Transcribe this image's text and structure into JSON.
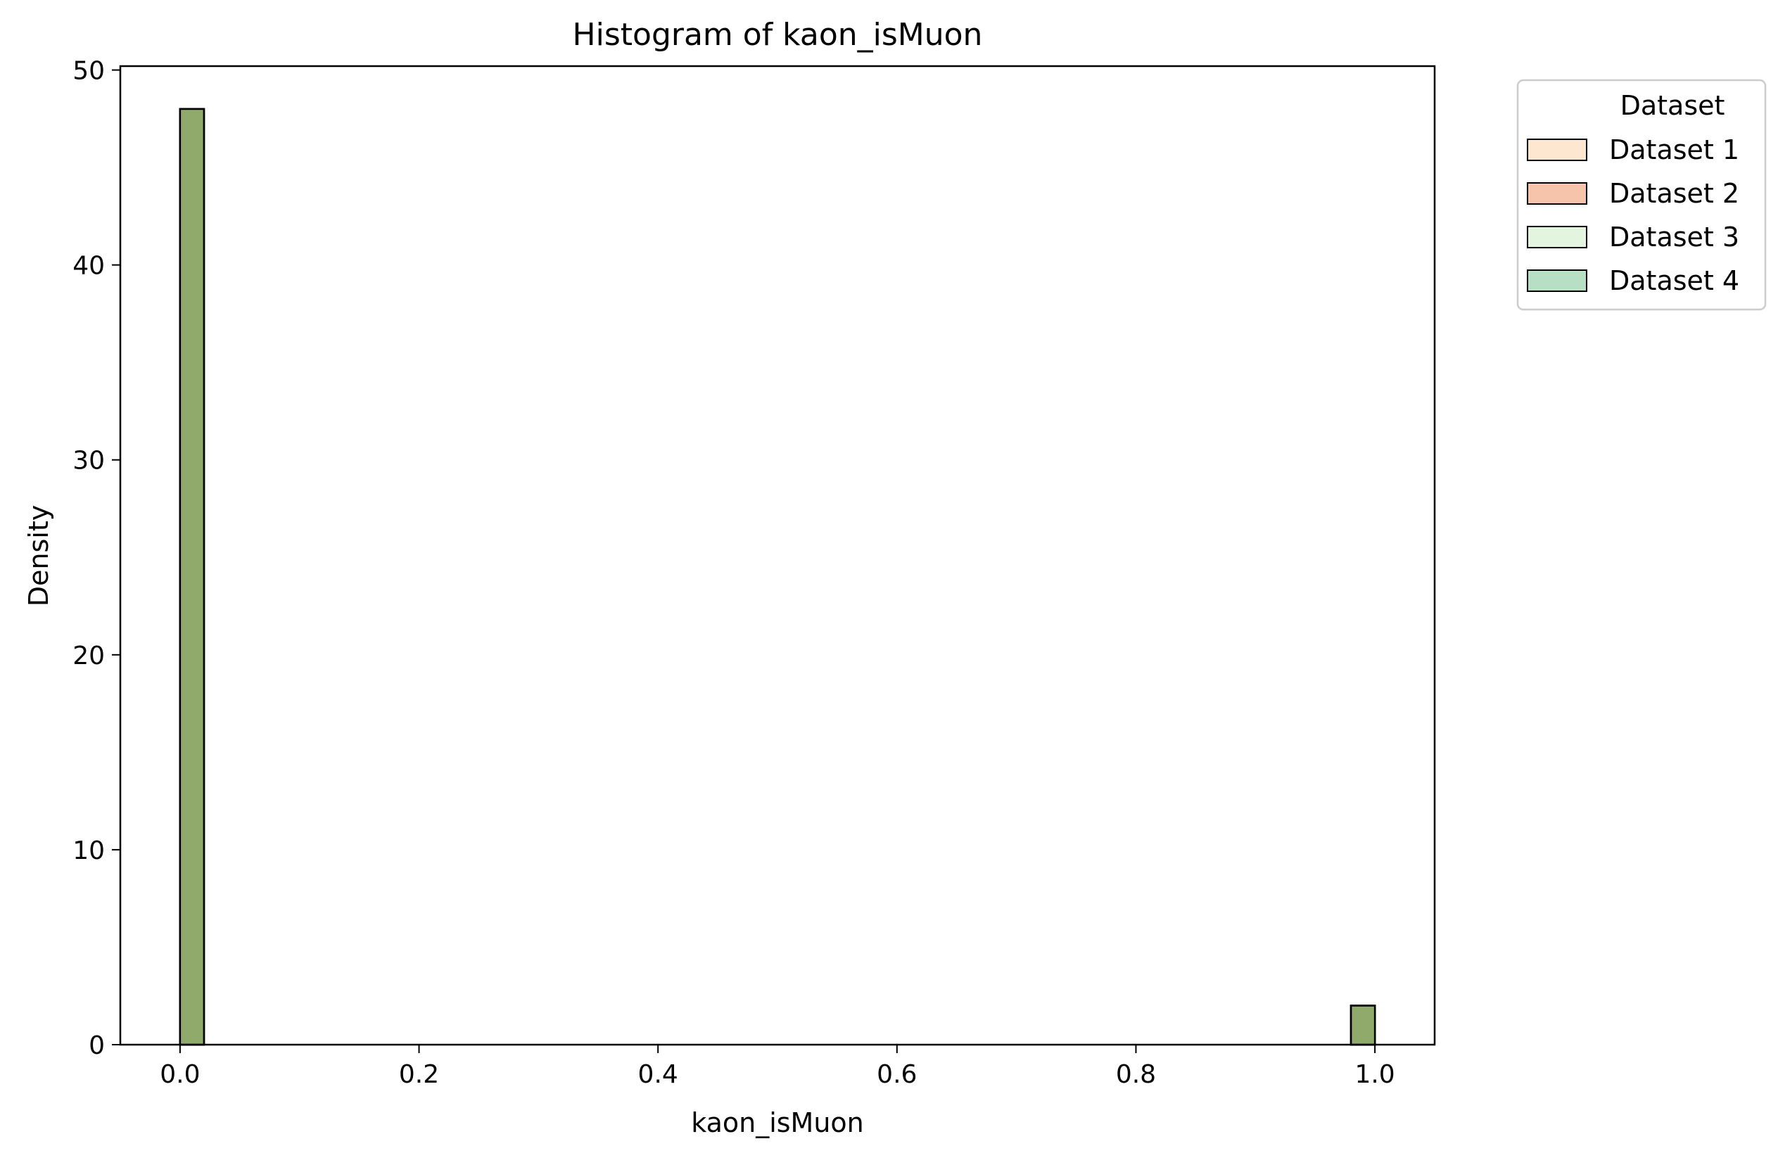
{
  "chart_data": {
    "type": "bar",
    "title": "Histogram of kaon_isMuon",
    "xlabel": "kaon_isMuon",
    "ylabel": "Density",
    "xlim": [
      -0.05,
      1.05
    ],
    "ylim": [
      0,
      50.2
    ],
    "xticks": [
      0.0,
      0.2,
      0.4,
      0.6,
      0.8,
      1.0
    ],
    "xtick_labels": [
      "0.0",
      "0.2",
      "0.4",
      "0.6",
      "0.8",
      "1.0"
    ],
    "yticks": [
      0,
      10,
      20,
      30,
      40,
      50
    ],
    "ytick_labels": [
      "0",
      "10",
      "20",
      "30",
      "40",
      "50"
    ],
    "bin_width": 0.02,
    "grid": false,
    "bins": [
      {
        "x0": 0.0,
        "x1": 0.02,
        "density": 48.0
      },
      {
        "x0": 0.98,
        "x1": 1.0,
        "density": 2.0
      }
    ],
    "series": [
      {
        "name": "Dataset 1",
        "color": "#fdd0a2",
        "opacity": 0.5,
        "values": [
          48.0,
          2.0
        ]
      },
      {
        "name": "Dataset 2",
        "color": "#e6550d",
        "opacity": 0.35,
        "values": [
          48.0,
          2.0
        ]
      },
      {
        "name": "Dataset 3",
        "color": "#c7e9c0",
        "opacity": 0.5,
        "values": [
          48.0,
          2.0
        ]
      },
      {
        "name": "Dataset 4",
        "color": "#31a354",
        "opacity": 0.35,
        "values": [
          48.0,
          2.0
        ]
      }
    ],
    "visible_bar_color": "#8faa6b",
    "legend": {
      "title": "Dataset",
      "placement": "outside-top-right",
      "entries": [
        "Dataset 1",
        "Dataset 2",
        "Dataset 3",
        "Dataset 4"
      ]
    }
  }
}
